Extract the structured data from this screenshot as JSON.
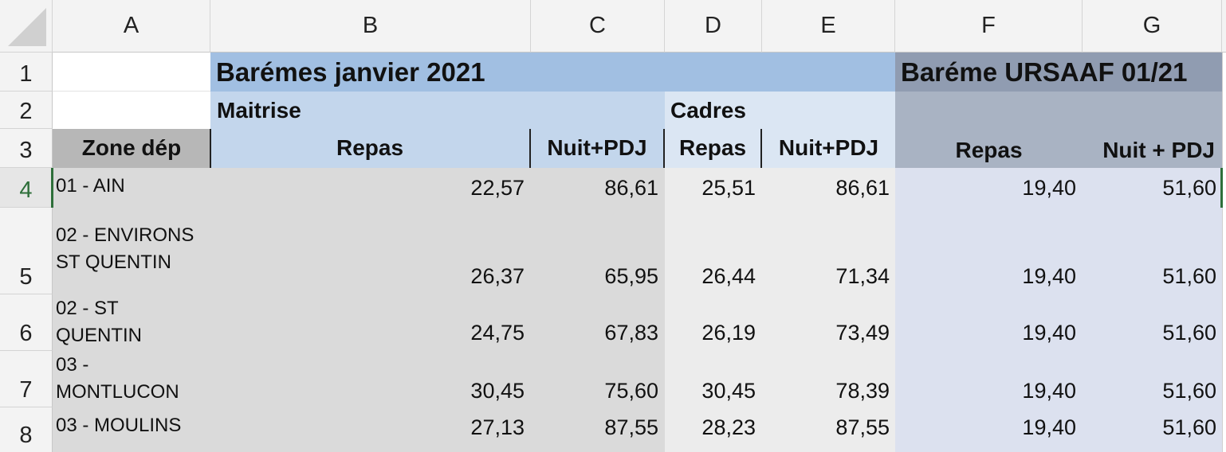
{
  "columns": [
    "A",
    "B",
    "C",
    "D",
    "E",
    "F",
    "G"
  ],
  "rows": [
    "1",
    "2",
    "3",
    "4",
    "5",
    "6",
    "7",
    "8"
  ],
  "titles": {
    "baremes": "Barémes janvier 2021",
    "ursaaf": "Baréme URSAAF 01/21"
  },
  "groups": {
    "maitrise": "Maitrise",
    "cadres": "Cadres"
  },
  "headers": {
    "zone": "Zone dép",
    "maitrise_repas": "Repas",
    "maitrise_nuit": "Nuit+PDJ",
    "cadres_repas": "Repas",
    "cadres_nuit": "Nuit+PDJ",
    "ursaaf_repas": "Repas",
    "ursaaf_nuit": "Nuit + PDJ"
  },
  "data": [
    {
      "zone": "01 - AIN",
      "b": "22,57",
      "c": "86,61",
      "d": "25,51",
      "e": "86,61",
      "f": "19,40",
      "g": "51,60"
    },
    {
      "zone": "02 - ENVIRONS ST QUENTIN",
      "b": "26,37",
      "c": "65,95",
      "d": "26,44",
      "e": "71,34",
      "f": "19,40",
      "g": "51,60"
    },
    {
      "zone": "02 - ST QUENTIN",
      "b": "24,75",
      "c": "67,83",
      "d": "26,19",
      "e": "73,49",
      "f": "19,40",
      "g": "51,60"
    },
    {
      "zone": "03 - MONTLUCON",
      "b": "30,45",
      "c": "75,60",
      "d": "30,45",
      "e": "78,39",
      "f": "19,40",
      "g": "51,60"
    },
    {
      "zone": "03 - MOULINS",
      "b": "27,13",
      "c": "87,55",
      "d": "28,23",
      "e": "87,55",
      "f": "19,40",
      "g": "51,60"
    }
  ],
  "colors": {
    "title_blue": "#a1bfe2",
    "maitrise_blue": "#c3d6ec",
    "cadres_blue": "#dbe6f3",
    "ursaaf_title": "#909cb1",
    "ursaaf_header": "#a9b3c3",
    "ursaaf_body": "#dce1ef",
    "zone_header": "#b7b7b7",
    "maitrise_body": "#dadada",
    "cadres_body": "#ececec",
    "selection": "#2e6f3a"
  }
}
